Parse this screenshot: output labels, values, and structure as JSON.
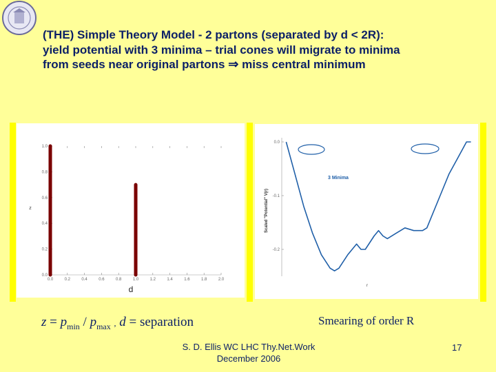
{
  "slide": {
    "title_lines": [
      "(THE) Simple Theory Model - 2 partons (separated by d < 2R):",
      "yield potential with 3 minima – trial cones will migrate to minima",
      "from seeds near original partons",
      "miss central minimum"
    ],
    "arrow_symbol": "⇒",
    "formula": {
      "z": "z",
      "eq": "=",
      "p": "p",
      "min": "min",
      "slash": "/",
      "max": "max",
      "comma": ",",
      "d": "d",
      "eq2": "=",
      "separation": "separation"
    },
    "smearing_text": "Smearing of order R",
    "footer_line1": "S. D. Ellis WC LHC Thy.Net.Work",
    "footer_line2": "December 2006",
    "page_number": "17"
  },
  "chart_data": [
    {
      "type": "bar",
      "xlabel": "d",
      "ylabel": "z",
      "xticks": [
        "0.0",
        "0.2",
        "0.4",
        "0.6",
        "0.8",
        "1.0",
        "1.2",
        "1.4",
        "1.6",
        "1.8",
        "2.0"
      ],
      "yticks": [
        "0.0",
        "0.2",
        "0.4",
        "0.6",
        "0.8",
        "1.0"
      ],
      "xlim": [
        0,
        2.0
      ],
      "ylim": [
        0,
        1.0
      ],
      "x": [
        0.0,
        1.0
      ],
      "values": [
        1.0,
        0.7
      ],
      "bar_color": "#7a0000"
    },
    {
      "type": "line",
      "xlabel": "r",
      "ylabel": "Scaled \"Potential\" V(r)",
      "yticks": [
        "0.0",
        "-0.1",
        "-0.2"
      ],
      "ylim": [
        -0.25,
        0.0
      ],
      "annotation": "3 Minima",
      "line_color": "#1f5fa8",
      "x": [
        -0.55,
        -0.45,
        -0.35,
        -0.25,
        -0.15,
        -0.05,
        0.0,
        0.05,
        0.15,
        0.25,
        0.3,
        0.35,
        0.45,
        0.5,
        0.55,
        0.6,
        0.7,
        0.8,
        0.9,
        1.0,
        1.05,
        1.1,
        1.2,
        1.3,
        1.4,
        1.5,
        1.55
      ],
      "y": [
        0.0,
        -0.06,
        -0.12,
        -0.17,
        -0.21,
        -0.235,
        -0.24,
        -0.235,
        -0.21,
        -0.19,
        -0.2,
        -0.2,
        -0.175,
        -0.165,
        -0.175,
        -0.18,
        -0.17,
        -0.16,
        -0.165,
        -0.165,
        -0.16,
        -0.14,
        -0.1,
        -0.06,
        -0.03,
        0.0,
        0.0
      ]
    }
  ]
}
